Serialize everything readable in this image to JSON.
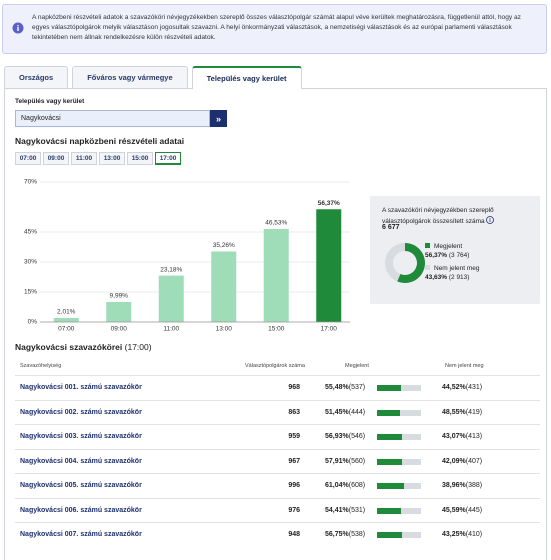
{
  "notice": "A napközbeni részvételi adatok a szavazóköri névjegyzékekben szereplő összes választópolgár számát alapul véve kerültek meghatározásra, függetlenül attól, hogy az egyes választópolgárok melyik választáson jogosultak szavazni. A helyi önkormányzati választások, a nemzetiségi választások és az európai parlamenti választások tekintetében nem állnak rendelkezésre külön részvételi adatok.",
  "tabs": [
    "Országos",
    "Főváros vagy vármegye",
    "Település vagy kerület"
  ],
  "active_tab": 2,
  "select": {
    "label": "Település vagy kerület",
    "value": "Nagykovácsi",
    "button": "»"
  },
  "times": [
    "07:00",
    "09:00",
    "11:00",
    "13:00",
    "15:00",
    "17:00"
  ],
  "active_time": 5,
  "chart_data": {
    "type": "bar",
    "title": "Nagykovácsi napközbeni részvételi adatai",
    "categories": [
      "07:00",
      "09:00",
      "11:00",
      "13:00",
      "15:00",
      "17:00"
    ],
    "values": [
      2.01,
      9.99,
      23.18,
      35.26,
      46.53,
      56.37
    ],
    "value_labels": [
      "2,01%",
      "9,99%",
      "23,18%",
      "35,26%",
      "46,53%",
      "56,37%"
    ],
    "colors": [
      "#9fdcb8",
      "#9fdcb8",
      "#9fdcb8",
      "#9fdcb8",
      "#9fdcb8",
      "#1e8a3a"
    ],
    "ylim": [
      0,
      70
    ],
    "yticks": [
      {
        "value": 0,
        "label": "0%"
      },
      {
        "value": 15,
        "label": "15%"
      },
      {
        "value": 30,
        "label": "30%"
      },
      {
        "value": 45,
        "label": "45%"
      },
      {
        "value": 70,
        "label": "70%"
      }
    ],
    "grid": true
  },
  "summary": {
    "text": "A szavazóköri névjegyzékben szereplő választópolgárok összesített száma",
    "total": "6 677",
    "legend": [
      "Megjelent",
      "Nem jelent meg"
    ],
    "values": [
      56.37,
      43.63
    ],
    "share_labels": [
      "56,37%",
      "43,63%"
    ],
    "counts": [
      "(3 764)",
      "(2 913)"
    ],
    "colors": [
      "#1e8a3a",
      "#d8dbe0"
    ]
  },
  "table": {
    "title": "Nagykovácsi szavazókörei",
    "time": "(17:00)",
    "headers": [
      "Szavazóhelyiség",
      "Választópolgárok száma",
      "Megjelent",
      "Nem jelent meg"
    ],
    "rows": [
      {
        "name": "Nagykovácsi 001. számú szavazókör",
        "voters": "968",
        "present": {
          "value": 55.48,
          "label": "55,48%"
        },
        "present_count": "(537)",
        "absent": "44,52%",
        "absent_count": "(431)"
      },
      {
        "name": "Nagykovácsi 002. számú szavazókör",
        "voters": "863",
        "present": {
          "value": 51.45,
          "label": "51,45%"
        },
        "present_count": "(444)",
        "absent": "48,55%",
        "absent_count": "(419)"
      },
      {
        "name": "Nagykovácsi 003. számú szavazókör",
        "voters": "959",
        "present": {
          "value": 56.93,
          "label": "56,93%"
        },
        "present_count": "(546)",
        "absent": "43,07%",
        "absent_count": "(413)"
      },
      {
        "name": "Nagykovácsi 004. számú szavazókör",
        "voters": "967",
        "present": {
          "value": 57.91,
          "label": "57,91%"
        },
        "present_count": "(560)",
        "absent": "42,09%",
        "absent_count": "(407)"
      },
      {
        "name": "Nagykovácsi 005. számú szavazókör",
        "voters": "996",
        "present": {
          "value": 61.04,
          "label": "61,04%"
        },
        "present_count": "(608)",
        "absent": "38,96%",
        "absent_count": "(388)"
      },
      {
        "name": "Nagykovácsi 006. számú szavazókör",
        "voters": "976",
        "present": {
          "value": 54.41,
          "label": "54,41%"
        },
        "present_count": "(531)",
        "absent": "45,59%",
        "absent_count": "(445)"
      },
      {
        "name": "Nagykovácsi 007. számú szavazókör",
        "voters": "948",
        "present": {
          "value": 56.75,
          "label": "56,75%"
        },
        "present_count": "(538)",
        "absent": "43,25%",
        "absent_count": "(410)"
      }
    ]
  }
}
